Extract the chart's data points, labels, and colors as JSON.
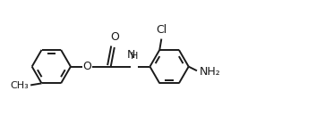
{
  "background_color": "#ffffff",
  "line_color": "#1a1a1a",
  "font_size": 8.5,
  "line_width": 1.4,
  "figsize": [
    3.72,
    1.39
  ],
  "dpi": 100,
  "xlim": [
    0.0,
    7.2
  ],
  "ylim": [
    -1.1,
    1.3
  ]
}
